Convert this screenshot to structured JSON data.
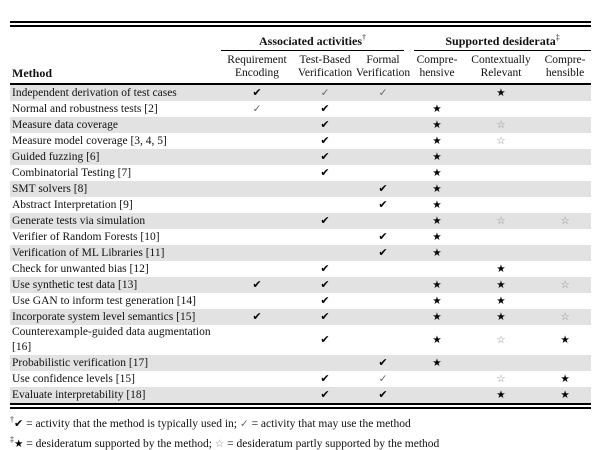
{
  "colors": {
    "row_shade": "#e2e2e2",
    "text": "#111111",
    "rule": "#000000",
    "light_mark": "#666666",
    "outline_star": "#8a8a8a"
  },
  "table": {
    "method_header": "Method",
    "groups": [
      {
        "label": "Associated activities",
        "sup": "†"
      },
      {
        "label": "Supported desiderata",
        "sup": "‡"
      }
    ],
    "columns": [
      {
        "line1": "Requirement",
        "line2": "Encoding"
      },
      {
        "line1": "Test-Based",
        "line2": "Verification"
      },
      {
        "line1": "Formal",
        "line2": "Verification"
      },
      {
        "line1": "Compre-",
        "line2": "hensive"
      },
      {
        "line1": "Contextually",
        "line2": "Relevant"
      },
      {
        "line1": "Compre-",
        "line2": "hensible"
      }
    ],
    "symbols": {
      "HC": {
        "glyph": "✔",
        "class": "heavy-check",
        "name": "heavy-check-icon"
      },
      "LC": {
        "glyph": "✓",
        "class": "light-check",
        "name": "light-check-icon"
      },
      "FS": {
        "glyph": "★",
        "class": "filled-star",
        "name": "filled-star-icon"
      },
      "OS": {
        "glyph": "☆",
        "class": "outline-star",
        "name": "outline-star-icon"
      }
    },
    "rows": [
      {
        "method": "Independent derivation of test cases",
        "cells": [
          "HC",
          "LC",
          "LC",
          "",
          "FS",
          ""
        ],
        "shaded": true
      },
      {
        "method": "Normal and robustness tests [2]",
        "cells": [
          "LC",
          "HC",
          "",
          "FS",
          "",
          ""
        ],
        "shaded": false
      },
      {
        "method": "Measure data coverage",
        "cells": [
          "",
          "HC",
          "",
          "FS",
          "OS",
          ""
        ],
        "shaded": true
      },
      {
        "method": "Measure model coverage [3, 4, 5]",
        "cells": [
          "",
          "HC",
          "",
          "FS",
          "OS",
          ""
        ],
        "shaded": false
      },
      {
        "method": "Guided fuzzing [6]",
        "cells": [
          "",
          "HC",
          "",
          "FS",
          "",
          ""
        ],
        "shaded": true
      },
      {
        "method": "Combinatorial Testing [7]",
        "cells": [
          "",
          "HC",
          "",
          "FS",
          "",
          ""
        ],
        "shaded": false
      },
      {
        "method": "SMT solvers [8]",
        "cells": [
          "",
          "",
          "HC",
          "FS",
          "",
          ""
        ],
        "shaded": true
      },
      {
        "method": "Abstract Interpretation [9]",
        "cells": [
          "",
          "",
          "HC",
          "FS",
          "",
          ""
        ],
        "shaded": false
      },
      {
        "method": "Generate tests via simulation",
        "cells": [
          "",
          "HC",
          "",
          "FS",
          "OS",
          "OS"
        ],
        "shaded": true
      },
      {
        "method": "Verifier of Random Forests [10]",
        "cells": [
          "",
          "",
          "HC",
          "FS",
          "",
          ""
        ],
        "shaded": false
      },
      {
        "method": "Verification of ML Libraries [11]",
        "cells": [
          "",
          "",
          "HC",
          "FS",
          "",
          ""
        ],
        "shaded": true
      },
      {
        "method": "Check for unwanted bias [12]",
        "cells": [
          "",
          "HC",
          "",
          "",
          "FS",
          ""
        ],
        "shaded": false
      },
      {
        "method": "Use synthetic test data [13]",
        "cells": [
          "HC",
          "HC",
          "",
          "FS",
          "FS",
          "OS"
        ],
        "shaded": true
      },
      {
        "method": "Use GAN to inform test generation [14]",
        "cells": [
          "",
          "HC",
          "",
          "FS",
          "FS",
          ""
        ],
        "shaded": false
      },
      {
        "method": "Incorporate system level semantics [15]",
        "cells": [
          "HC",
          "HC",
          "",
          "FS",
          "FS",
          "OS"
        ],
        "shaded": true
      },
      {
        "method": "Counterexample-guided data augmentation [16]",
        "cells": [
          "",
          "HC",
          "",
          "FS",
          "OS",
          "FS"
        ],
        "shaded": false
      },
      {
        "method": "Probabilistic verification [17]",
        "cells": [
          "",
          "",
          "HC",
          "FS",
          "",
          ""
        ],
        "shaded": true
      },
      {
        "method": "Use confidence levels [15]",
        "cells": [
          "",
          "HC",
          "LC",
          "",
          "OS",
          "FS"
        ],
        "shaded": false
      },
      {
        "method": "Evaluate interpretability [18]",
        "cells": [
          "",
          "HC",
          "HC",
          "",
          "FS",
          "FS"
        ],
        "shaded": true
      }
    ]
  },
  "footnotes": [
    {
      "sup": "†",
      "sym1": "✔",
      "text1": " = activity that the method is typically used in; ",
      "sym2": "✓",
      "text2": " = activity that may use the method"
    },
    {
      "sup": "‡",
      "sym1": "★",
      "text1": " = desideratum supported by the method; ",
      "sym2": "☆",
      "text2": " = desideratum partly supported by the method"
    }
  ]
}
